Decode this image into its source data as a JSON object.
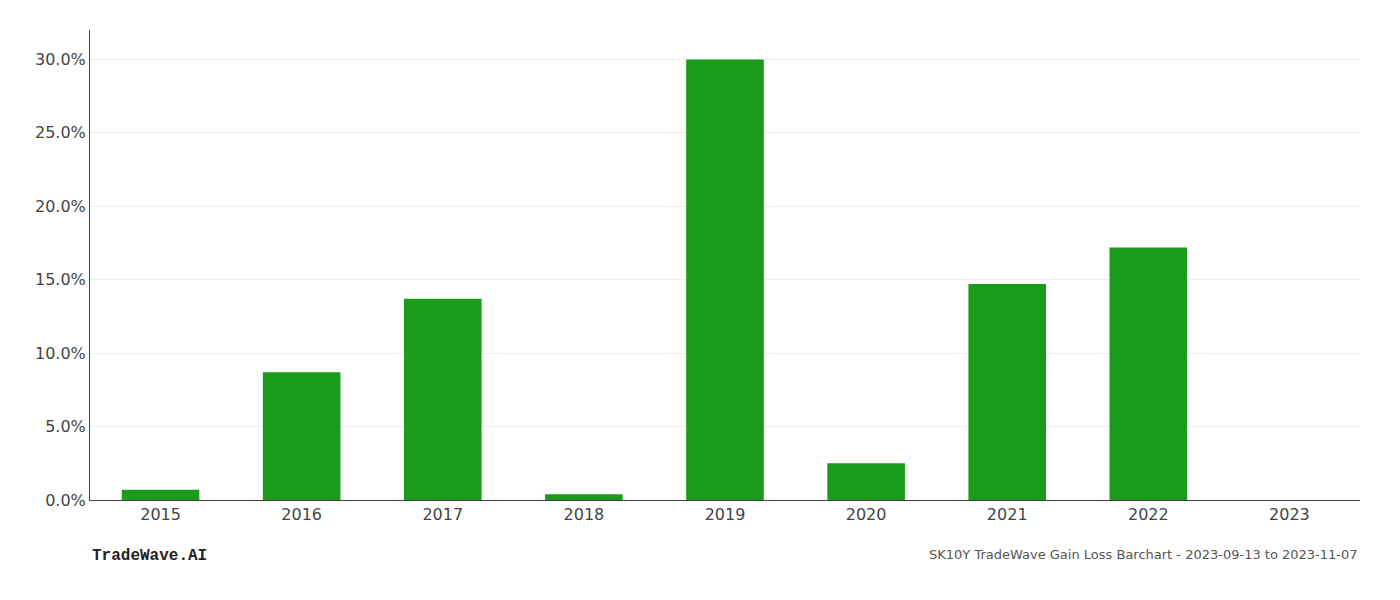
{
  "chart_data": {
    "type": "bar",
    "categories": [
      "2015",
      "2016",
      "2017",
      "2018",
      "2019",
      "2020",
      "2021",
      "2022",
      "2023"
    ],
    "values": [
      0.007,
      0.087,
      0.137,
      0.004,
      0.3,
      0.025,
      0.147,
      0.172,
      0.0
    ],
    "color": "#1a9c1a",
    "ylim": [
      0,
      0.32
    ],
    "yticks": [
      {
        "value": 0.0,
        "label": "0.0%"
      },
      {
        "value": 0.05,
        "label": "5.0%"
      },
      {
        "value": 0.1,
        "label": "10.0%"
      },
      {
        "value": 0.15,
        "label": "15.0%"
      },
      {
        "value": 0.2,
        "label": "20.0%"
      },
      {
        "value": 0.25,
        "label": "25.0%"
      },
      {
        "value": 0.3,
        "label": "30.0%"
      }
    ],
    "grid": true,
    "annotations": [
      {
        "text": "TradeWave.AI"
      },
      {
        "text": "SK10Y TradeWave Gain Loss Barchart - 2023-09-13 to 2023-11-07"
      }
    ]
  }
}
